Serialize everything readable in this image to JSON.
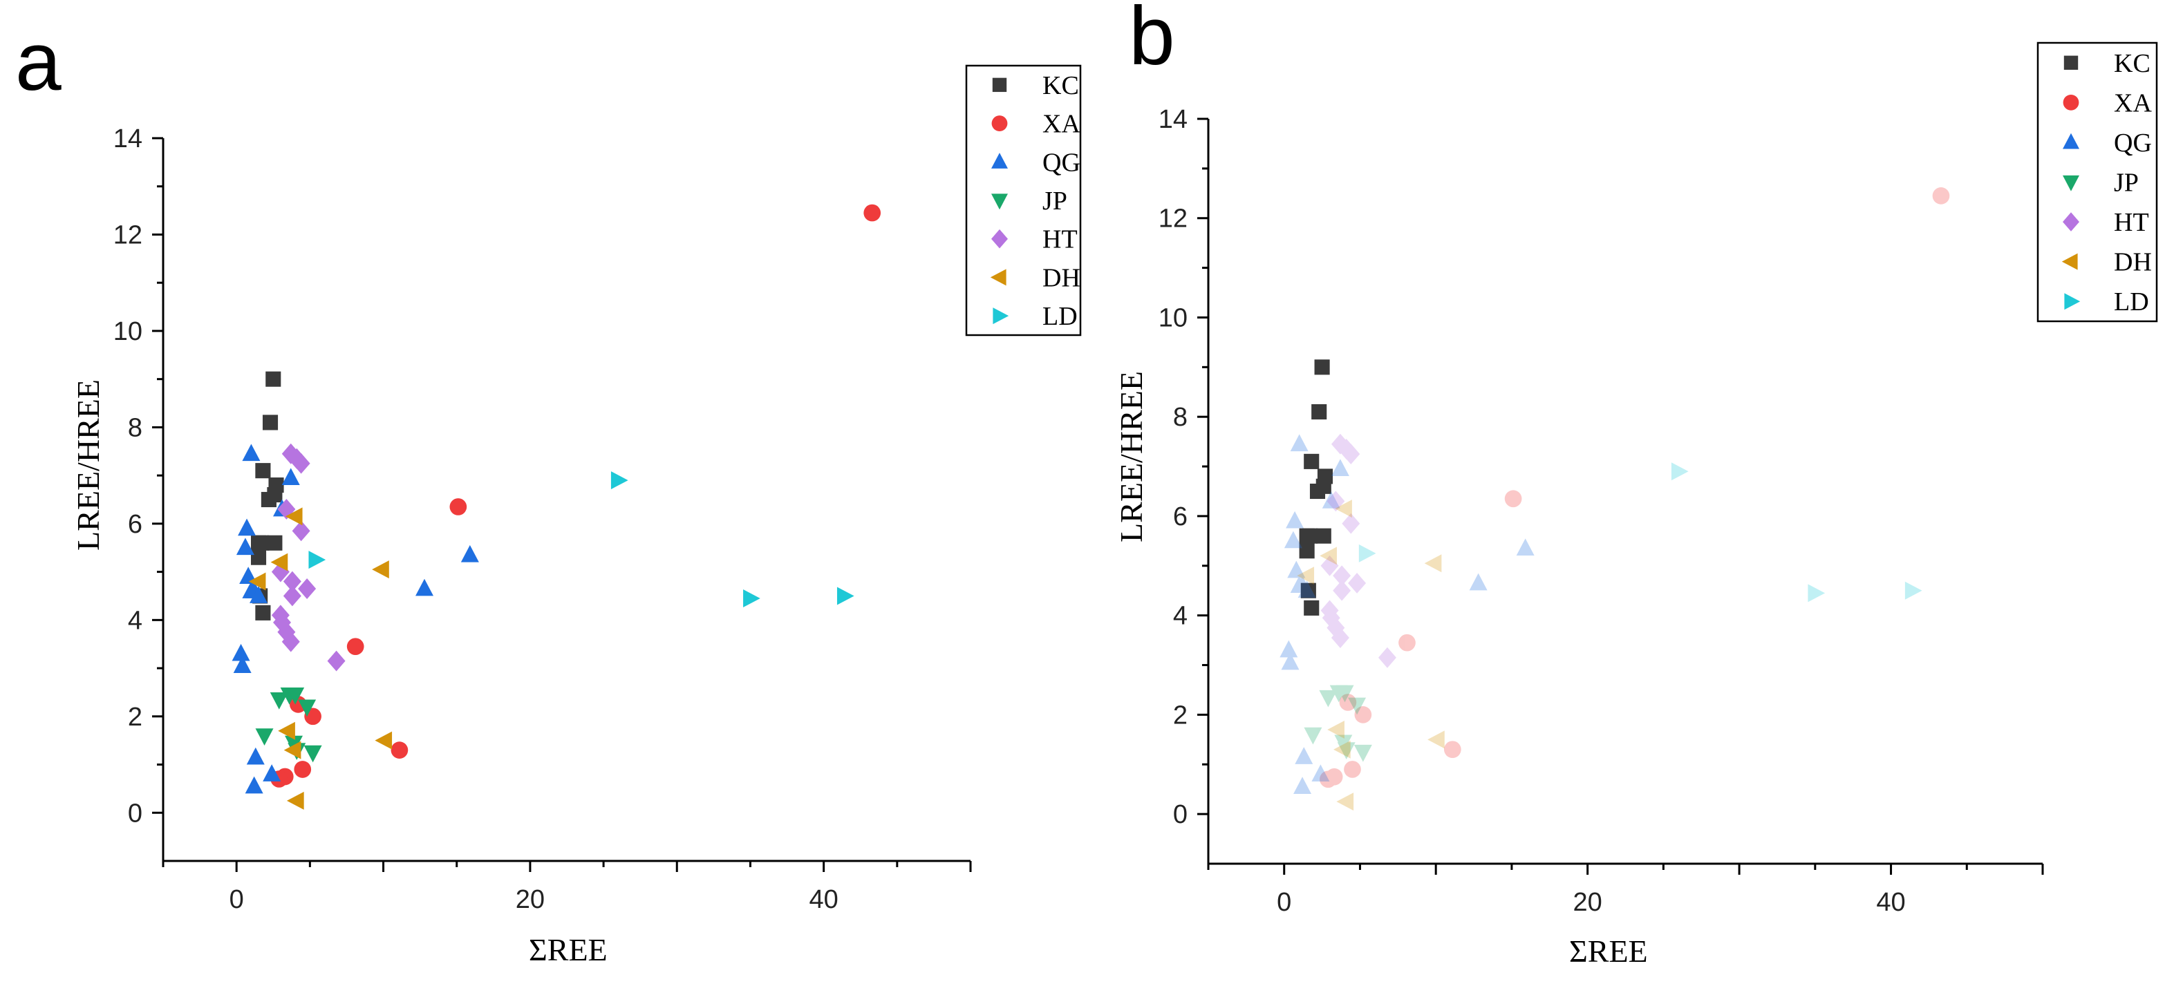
{
  "chart_data": [
    {
      "type": "scatter",
      "panel_label": "a",
      "faded": false,
      "xlabel": "ΣREE",
      "ylabel": "LREE/HREE",
      "xlim": [
        -5,
        50
      ],
      "ylim": [
        -1,
        14
      ],
      "xticks": [
        0,
        10,
        20,
        30,
        40,
        50
      ],
      "xtick_labels": [
        "0",
        "",
        "20",
        "",
        "40",
        ""
      ],
      "yticks": [
        0,
        2,
        4,
        6,
        8,
        10,
        12,
        14
      ],
      "minor_yticks": [
        1,
        3,
        5,
        7,
        9,
        11,
        13
      ],
      "legend_position": "top-right",
      "series": [
        {
          "name": "KC",
          "marker": "square",
          "color": "#3a3a3a",
          "points": [
            [
              2.5,
              9.0
            ],
            [
              2.3,
              8.1
            ],
            [
              1.8,
              7.1
            ],
            [
              2.7,
              6.8
            ],
            [
              2.6,
              6.6
            ],
            [
              2.2,
              6.5
            ],
            [
              1.5,
              5.6
            ],
            [
              1.7,
              5.6
            ],
            [
              2.6,
              5.6
            ],
            [
              1.5,
              5.3
            ],
            [
              1.6,
              4.5
            ],
            [
              1.8,
              4.15
            ]
          ]
        },
        {
          "name": "XA",
          "marker": "circle",
          "color": "#ef3b3b",
          "points": [
            [
              43.3,
              12.45
            ],
            [
              15.1,
              6.35
            ],
            [
              8.1,
              3.45
            ],
            [
              4.2,
              2.25
            ],
            [
              5.2,
              2.0
            ],
            [
              11.1,
              1.3
            ],
            [
              4.5,
              0.9
            ],
            [
              3.3,
              0.75
            ],
            [
              2.9,
              0.7
            ]
          ]
        },
        {
          "name": "QG",
          "marker": "triangle-up",
          "color": "#1f6fe0",
          "points": [
            [
              1.0,
              7.45
            ],
            [
              3.7,
              6.95
            ],
            [
              0.7,
              5.9
            ],
            [
              3.1,
              6.3
            ],
            [
              15.9,
              5.35
            ],
            [
              0.6,
              5.5
            ],
            [
              12.8,
              4.65
            ],
            [
              0.8,
              4.9
            ],
            [
              1.0,
              4.6
            ],
            [
              1.2,
              4.6
            ],
            [
              1.5,
              4.5
            ],
            [
              0.3,
              3.3
            ],
            [
              0.4,
              3.05
            ],
            [
              1.3,
              1.15
            ],
            [
              2.4,
              0.8
            ],
            [
              1.2,
              0.55
            ]
          ]
        },
        {
          "name": "JP",
          "marker": "triangle-down",
          "color": "#1aa86a",
          "points": [
            [
              3.6,
              2.45
            ],
            [
              4.0,
              2.45
            ],
            [
              2.9,
              2.35
            ],
            [
              4.8,
              2.2
            ],
            [
              1.9,
              1.6
            ],
            [
              3.9,
              1.45
            ],
            [
              4.1,
              1.3
            ],
            [
              5.2,
              1.25
            ]
          ]
        },
        {
          "name": "HT",
          "marker": "diamond",
          "color": "#b674e0",
          "points": [
            [
              3.7,
              7.45
            ],
            [
              4.1,
              7.35
            ],
            [
              4.4,
              7.25
            ],
            [
              3.4,
              6.3
            ],
            [
              4.4,
              5.85
            ],
            [
              3.0,
              5.0
            ],
            [
              3.8,
              4.8
            ],
            [
              4.8,
              4.65
            ],
            [
              3.8,
              4.5
            ],
            [
              3.0,
              4.1
            ],
            [
              3.1,
              3.95
            ],
            [
              3.4,
              3.75
            ],
            [
              3.7,
              3.55
            ],
            [
              6.8,
              3.15
            ]
          ]
        },
        {
          "name": "DH",
          "marker": "triangle-left",
          "color": "#d4920a",
          "points": [
            [
              4.0,
              6.15
            ],
            [
              9.9,
              5.05
            ],
            [
              3.0,
              5.2
            ],
            [
              1.5,
              4.8
            ],
            [
              3.5,
              1.7
            ],
            [
              10.1,
              1.5
            ],
            [
              3.9,
              1.3
            ],
            [
              4.1,
              0.25
            ]
          ]
        },
        {
          "name": "LD",
          "marker": "triangle-right",
          "color": "#1ec8d6",
          "points": [
            [
              26.0,
              6.9
            ],
            [
              5.4,
              5.25
            ],
            [
              35.0,
              4.45
            ],
            [
              41.4,
              4.5
            ]
          ]
        }
      ]
    },
    {
      "type": "scatter",
      "panel_label": "b",
      "faded": true,
      "xlabel": "ΣREE",
      "ylabel": "LREE/HREE",
      "xlim": [
        -5,
        50
      ],
      "ylim": [
        -1,
        14
      ],
      "xticks": [
        0,
        10,
        20,
        30,
        40,
        50
      ],
      "xtick_labels": [
        "0",
        "",
        "20",
        "",
        "40",
        ""
      ],
      "yticks": [
        0,
        2,
        4,
        6,
        8,
        10,
        12,
        14
      ],
      "minor_yticks": [
        1,
        3,
        5,
        7,
        9,
        11,
        13
      ],
      "legend_position": "top-right",
      "highlighted_series": "KC",
      "series": [
        {
          "name": "KC",
          "marker": "square",
          "color": "#3a3a3a",
          "points": [
            [
              2.5,
              9.0
            ],
            [
              2.3,
              8.1
            ],
            [
              1.8,
              7.1
            ],
            [
              2.7,
              6.8
            ],
            [
              2.6,
              6.6
            ],
            [
              2.2,
              6.5
            ],
            [
              1.5,
              5.6
            ],
            [
              1.7,
              5.6
            ],
            [
              2.6,
              5.6
            ],
            [
              1.5,
              5.3
            ],
            [
              1.6,
              4.5
            ],
            [
              1.8,
              4.15
            ]
          ]
        },
        {
          "name": "XA",
          "marker": "circle",
          "color": "#ef3b3b",
          "points": [
            [
              43.3,
              12.45
            ],
            [
              15.1,
              6.35
            ],
            [
              8.1,
              3.45
            ],
            [
              4.2,
              2.25
            ],
            [
              5.2,
              2.0
            ],
            [
              11.1,
              1.3
            ],
            [
              4.5,
              0.9
            ],
            [
              3.3,
              0.75
            ],
            [
              2.9,
              0.7
            ]
          ]
        },
        {
          "name": "QG",
          "marker": "triangle-up",
          "color": "#1f6fe0",
          "points": [
            [
              1.0,
              7.45
            ],
            [
              3.7,
              6.95
            ],
            [
              0.7,
              5.9
            ],
            [
              3.1,
              6.3
            ],
            [
              15.9,
              5.35
            ],
            [
              0.6,
              5.5
            ],
            [
              12.8,
              4.65
            ],
            [
              0.8,
              4.9
            ],
            [
              1.0,
              4.6
            ],
            [
              1.2,
              4.6
            ],
            [
              1.5,
              4.5
            ],
            [
              0.3,
              3.3
            ],
            [
              0.4,
              3.05
            ],
            [
              1.3,
              1.15
            ],
            [
              2.4,
              0.8
            ],
            [
              1.2,
              0.55
            ]
          ]
        },
        {
          "name": "JP",
          "marker": "triangle-down",
          "color": "#1aa86a",
          "points": [
            [
              3.6,
              2.45
            ],
            [
              4.0,
              2.45
            ],
            [
              2.9,
              2.35
            ],
            [
              4.8,
              2.2
            ],
            [
              1.9,
              1.6
            ],
            [
              3.9,
              1.45
            ],
            [
              4.1,
              1.3
            ],
            [
              5.2,
              1.25
            ]
          ]
        },
        {
          "name": "HT",
          "marker": "diamond",
          "color": "#b674e0",
          "points": [
            [
              3.7,
              7.45
            ],
            [
              4.1,
              7.35
            ],
            [
              4.4,
              7.25
            ],
            [
              3.4,
              6.3
            ],
            [
              4.4,
              5.85
            ],
            [
              3.0,
              5.0
            ],
            [
              3.8,
              4.8
            ],
            [
              4.8,
              4.65
            ],
            [
              3.8,
              4.5
            ],
            [
              3.0,
              4.1
            ],
            [
              3.1,
              3.95
            ],
            [
              3.4,
              3.75
            ],
            [
              3.7,
              3.55
            ],
            [
              6.8,
              3.15
            ]
          ]
        },
        {
          "name": "DH",
          "marker": "triangle-left",
          "color": "#d4920a",
          "points": [
            [
              4.0,
              6.15
            ],
            [
              9.9,
              5.05
            ],
            [
              3.0,
              5.2
            ],
            [
              1.5,
              4.8
            ],
            [
              3.5,
              1.7
            ],
            [
              10.1,
              1.5
            ],
            [
              3.9,
              1.3
            ],
            [
              4.1,
              0.25
            ]
          ]
        },
        {
          "name": "LD",
          "marker": "triangle-right",
          "color": "#1ec8d6",
          "points": [
            [
              26.0,
              6.9
            ],
            [
              5.4,
              5.25
            ],
            [
              35.0,
              4.45
            ],
            [
              41.4,
              4.5
            ]
          ]
        }
      ]
    }
  ]
}
